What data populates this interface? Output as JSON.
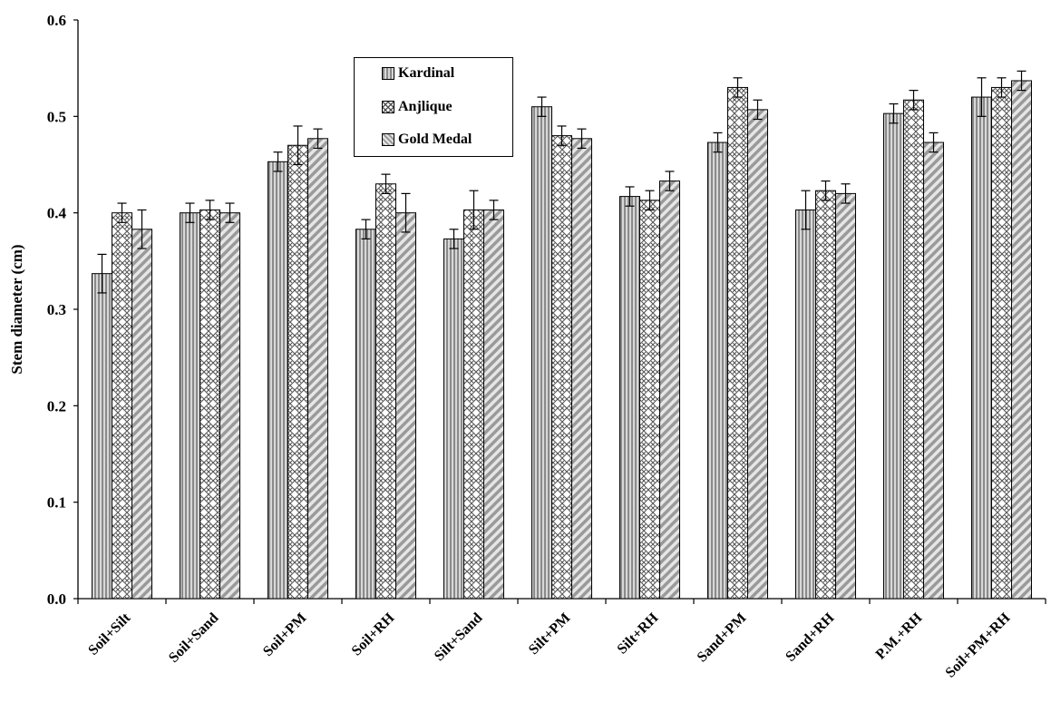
{
  "chart_data": {
    "type": "bar",
    "ylabel": "Stem diameter (cm)",
    "ylim": [
      0,
      0.6
    ],
    "yticks": [
      "0.0",
      "0.1",
      "0.2",
      "0.3",
      "0.4",
      "0.5",
      "0.6"
    ],
    "categories": [
      "Soil+Silt",
      "Soil+Sand",
      "Soil+PM",
      "Soil+RH",
      "Silt+Sand",
      "Silt+PM",
      "Silt+RH",
      "Sand+PM",
      "Sand+RH",
      "P.M.+RH",
      "Soil+PM+RH"
    ],
    "series": [
      {
        "name": "Kardinal",
        "pattern": "vertical-stripes",
        "values": [
          0.337,
          0.4,
          0.453,
          0.383,
          0.373,
          0.51,
          0.417,
          0.473,
          0.403,
          0.503,
          0.52
        ],
        "errors": [
          0.02,
          0.01,
          0.01,
          0.01,
          0.01,
          0.01,
          0.01,
          0.01,
          0.02,
          0.01,
          0.02
        ]
      },
      {
        "name": "Anjlique",
        "pattern": "crosshatch",
        "values": [
          0.4,
          0.403,
          0.47,
          0.43,
          0.403,
          0.48,
          0.413,
          0.53,
          0.423,
          0.517,
          0.53
        ],
        "errors": [
          0.01,
          0.01,
          0.02,
          0.01,
          0.02,
          0.01,
          0.01,
          0.01,
          0.01,
          0.01,
          0.01
        ]
      },
      {
        "name": "Gold Medal",
        "pattern": "diagonal-stripes",
        "values": [
          0.383,
          0.4,
          0.477,
          0.4,
          0.403,
          0.477,
          0.433,
          0.507,
          0.42,
          0.473,
          0.537
        ],
        "errors": [
          0.02,
          0.01,
          0.01,
          0.02,
          0.01,
          0.01,
          0.01,
          0.01,
          0.01,
          0.01,
          0.01
        ]
      }
    ],
    "grid": false,
    "legend_position": "top-center",
    "colors": {
      "bar_fill": "#cfcfcf",
      "pattern": "#555555",
      "axis": "#000000"
    }
  }
}
